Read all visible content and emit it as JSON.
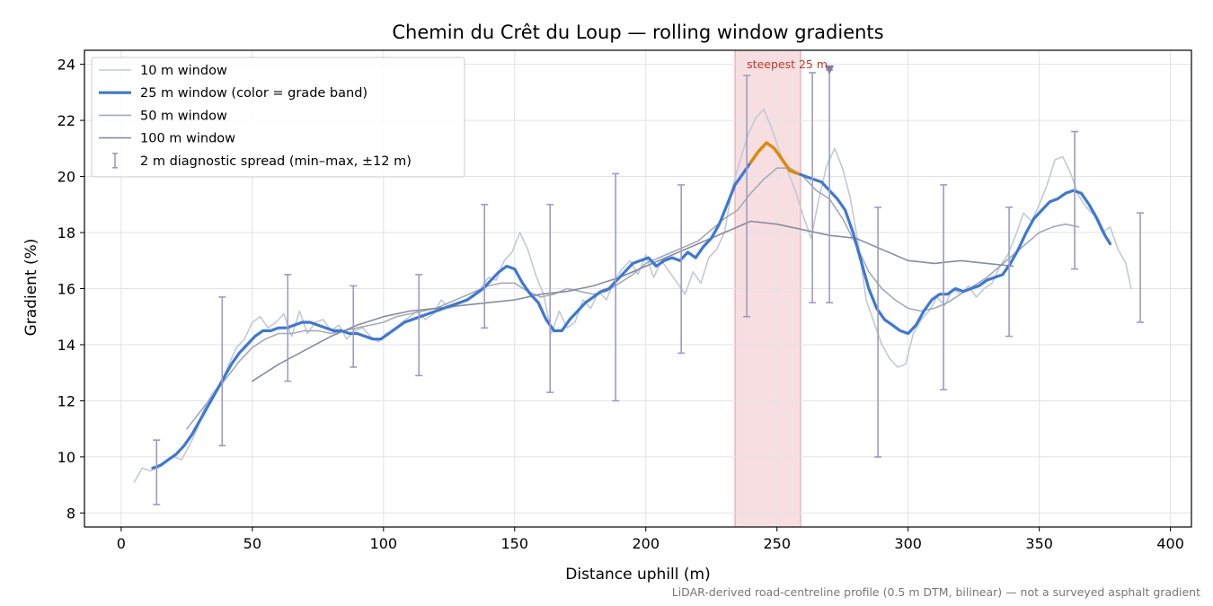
{
  "chart_data": {
    "type": "line",
    "title": "Chemin du Crêt du Loup — rolling window gradients",
    "xlabel": "Distance uphill (m)",
    "ylabel": "Gradient (%)",
    "xlim": [
      -14,
      408
    ],
    "ylim": [
      7.5,
      24.5
    ],
    "xticks": [
      0,
      50,
      100,
      150,
      200,
      250,
      300,
      350,
      400
    ],
    "yticks": [
      8,
      10,
      12,
      14,
      16,
      18,
      20,
      22,
      24
    ],
    "grid": true,
    "legend_position": "top-left",
    "colors": {
      "w10": "#c3c9d3",
      "w25": "#3b78d8",
      "w25_steep": "#e08a00",
      "w50": "#a3aab8",
      "w100": "#868d9a",
      "errorbar": "#9d9cc0",
      "highlight": "#f0c4c8",
      "annotation": "#c0392b",
      "marker": "#8878a8"
    },
    "series": [
      {
        "name": "10 m window",
        "x": [
          5,
          8,
          11,
          14,
          17,
          20,
          23,
          26,
          29,
          32,
          35,
          38,
          41,
          44,
          47,
          50,
          53,
          56,
          59,
          62,
          65,
          68,
          71,
          74,
          77,
          80,
          83,
          86,
          89,
          92,
          95,
          98,
          101,
          104,
          107,
          110,
          113,
          116,
          119,
          122,
          125,
          128,
          131,
          134,
          137,
          140,
          143,
          146,
          149,
          152,
          155,
          158,
          161,
          164,
          167,
          170,
          173,
          176,
          179,
          182,
          185,
          188,
          191,
          194,
          197,
          200,
          203,
          206,
          209,
          212,
          215,
          218,
          221,
          224,
          227,
          230,
          233,
          236,
          239,
          242,
          245,
          248,
          251,
          254,
          257,
          260,
          263,
          266,
          269,
          272,
          275,
          278,
          281,
          284,
          287,
          290,
          293,
          296,
          299,
          302,
          305,
          308,
          311,
          314,
          317,
          320,
          323,
          326,
          329,
          332,
          335,
          338,
          341,
          344,
          347,
          350,
          353,
          356,
          359,
          362,
          365,
          368,
          371,
          374,
          377,
          380,
          383,
          385
        ],
        "y": [
          9.1,
          9.6,
          9.5,
          9.6,
          9.8,
          10.0,
          9.9,
          10.4,
          11.0,
          11.8,
          12.3,
          12.6,
          13.3,
          13.9,
          14.2,
          14.8,
          15.0,
          14.6,
          14.8,
          15.1,
          14.3,
          15.2,
          14.4,
          14.8,
          14.9,
          14.5,
          14.7,
          14.2,
          14.5,
          14.6,
          14.3,
          14.1,
          14.4,
          14.5,
          14.8,
          15.0,
          15.2,
          14.9,
          15.1,
          15.6,
          15.3,
          15.4,
          15.6,
          15.7,
          16.0,
          16.4,
          16.3,
          17.0,
          17.3,
          18.0,
          17.4,
          16.5,
          15.8,
          14.4,
          15.2,
          14.6,
          14.8,
          15.6,
          15.3,
          15.9,
          15.6,
          16.3,
          16.7,
          17.0,
          16.5,
          17.2,
          16.4,
          17.0,
          16.6,
          16.2,
          15.8,
          16.6,
          16.2,
          17.1,
          17.4,
          18.0,
          19.6,
          20.6,
          21.5,
          22.1,
          22.4,
          21.7,
          20.9,
          20.2,
          19.5,
          18.6,
          17.8,
          19.2,
          20.4,
          21.0,
          20.3,
          19.2,
          17.6,
          15.6,
          14.8,
          14.0,
          13.5,
          13.2,
          13.3,
          14.4,
          14.9,
          15.2,
          15.7,
          15.4,
          16.0,
          15.8,
          16.1,
          15.7,
          16.0,
          16.2,
          16.8,
          17.2,
          17.9,
          18.7,
          18.4,
          19.0,
          19.7,
          20.6,
          20.7,
          20.1,
          19.3,
          18.9,
          18.6,
          18.0,
          18.2,
          17.4,
          16.9,
          16.0
        ]
      },
      {
        "name": "25 m window (color = grade band)",
        "x": [
          12,
          15,
          18,
          21,
          24,
          27,
          30,
          33,
          36,
          39,
          42,
          45,
          48,
          51,
          54,
          57,
          60,
          63,
          66,
          69,
          72,
          75,
          78,
          81,
          84,
          87,
          90,
          93,
          96,
          99,
          102,
          105,
          108,
          111,
          114,
          117,
          120,
          123,
          126,
          129,
          132,
          135,
          138,
          141,
          144,
          147,
          150,
          153,
          156,
          159,
          162,
          165,
          168,
          171,
          174,
          177,
          180,
          183,
          186,
          189,
          192,
          195,
          198,
          201,
          204,
          207,
          210,
          213,
          216,
          219,
          222,
          225,
          228,
          231,
          234,
          237,
          240,
          243,
          246,
          249,
          252,
          255,
          258,
          261,
          264,
          267,
          270,
          273,
          276,
          279,
          282,
          285,
          288,
          291,
          294,
          297,
          300,
          303,
          306,
          309,
          312,
          315,
          318,
          321,
          324,
          327,
          330,
          333,
          336,
          339,
          342,
          345,
          348,
          351,
          354,
          357,
          360,
          363,
          366,
          369,
          372,
          375,
          377
        ],
        "y": [
          9.6,
          9.7,
          9.9,
          10.1,
          10.4,
          10.8,
          11.3,
          11.8,
          12.3,
          12.8,
          13.3,
          13.7,
          14.0,
          14.3,
          14.5,
          14.5,
          14.6,
          14.6,
          14.7,
          14.8,
          14.8,
          14.7,
          14.6,
          14.5,
          14.5,
          14.4,
          14.4,
          14.3,
          14.2,
          14.2,
          14.4,
          14.6,
          14.8,
          14.9,
          15.0,
          15.1,
          15.2,
          15.3,
          15.4,
          15.5,
          15.6,
          15.8,
          16.0,
          16.3,
          16.6,
          16.8,
          16.7,
          16.2,
          15.8,
          15.5,
          14.9,
          14.5,
          14.5,
          14.9,
          15.2,
          15.5,
          15.7,
          15.9,
          16.0,
          16.3,
          16.6,
          16.9,
          17.0,
          17.1,
          16.8,
          17.0,
          17.1,
          17.0,
          17.3,
          17.1,
          17.5,
          17.8,
          18.3,
          19.0,
          19.7,
          20.1,
          20.5,
          20.9,
          21.2,
          21.0,
          20.6,
          20.2,
          20.1,
          20.0,
          19.9,
          19.8,
          19.5,
          19.2,
          18.8,
          18.0,
          17.0,
          16.0,
          15.3,
          14.9,
          14.7,
          14.5,
          14.4,
          14.7,
          15.2,
          15.6,
          15.8,
          15.8,
          16.0,
          15.9,
          16.0,
          16.1,
          16.3,
          16.4,
          16.5,
          16.9,
          17.4,
          18.0,
          18.5,
          18.8,
          19.1,
          19.2,
          19.4,
          19.5,
          19.4,
          19.0,
          18.5,
          17.9,
          17.6
        ]
      },
      {
        "name": "50 m window",
        "x": [
          25,
          30,
          35,
          40,
          45,
          50,
          55,
          60,
          65,
          70,
          75,
          80,
          85,
          90,
          95,
          100,
          105,
          110,
          115,
          120,
          125,
          130,
          135,
          140,
          145,
          150,
          155,
          160,
          165,
          170,
          175,
          180,
          185,
          190,
          195,
          200,
          205,
          210,
          215,
          220,
          225,
          230,
          235,
          240,
          245,
          250,
          255,
          260,
          265,
          270,
          275,
          280,
          285,
          290,
          295,
          300,
          305,
          310,
          315,
          320,
          325,
          330,
          335,
          340,
          345,
          350,
          355,
          360,
          365
        ],
        "y": [
          11.0,
          11.6,
          12.2,
          12.8,
          13.4,
          13.9,
          14.2,
          14.4,
          14.4,
          14.5,
          14.5,
          14.4,
          14.5,
          14.6,
          14.7,
          14.8,
          15.0,
          15.1,
          15.2,
          15.3,
          15.5,
          15.7,
          15.9,
          16.1,
          16.2,
          16.2,
          15.9,
          15.7,
          15.8,
          16.0,
          15.9,
          15.8,
          15.9,
          16.2,
          16.5,
          16.9,
          17.1,
          17.3,
          17.5,
          17.7,
          18.1,
          18.5,
          18.8,
          19.4,
          19.9,
          20.3,
          20.3,
          20.0,
          19.5,
          19.2,
          18.5,
          17.6,
          16.6,
          16.0,
          15.6,
          15.3,
          15.2,
          15.3,
          15.5,
          15.8,
          16.1,
          16.4,
          16.8,
          17.2,
          17.6,
          18.0,
          18.2,
          18.3,
          18.2
        ]
      },
      {
        "name": "100 m window",
        "x": [
          50,
          60,
          70,
          80,
          90,
          100,
          110,
          120,
          130,
          140,
          150,
          160,
          170,
          180,
          190,
          200,
          210,
          220,
          230,
          240,
          250,
          260,
          270,
          280,
          290,
          300,
          310,
          320,
          330,
          340
        ],
        "y": [
          12.7,
          13.3,
          13.8,
          14.3,
          14.7,
          15.0,
          15.2,
          15.3,
          15.4,
          15.5,
          15.6,
          15.8,
          15.9,
          16.1,
          16.4,
          16.8,
          17.2,
          17.6,
          18.0,
          18.4,
          18.3,
          18.1,
          17.9,
          17.8,
          17.4,
          17.0,
          16.9,
          17.0,
          16.9,
          16.8
        ]
      }
    ],
    "steep_segment": {
      "name": "25 m window (color = grade band)",
      "x": [
        240,
        243,
        246,
        249,
        252,
        255,
        258
      ],
      "y": [
        20.5,
        20.9,
        21.2,
        21.0,
        20.6,
        20.2,
        20.1
      ]
    },
    "error_bars": {
      "name": "2 m diagnostic spread (min–max, ±12 m)",
      "x": [
        13.5,
        38.5,
        63.5,
        88.5,
        113.5,
        138.5,
        163.5,
        188.5,
        213.5,
        238.5,
        263.5,
        270,
        288.5,
        313.5,
        338.5,
        363.5,
        388.5
      ],
      "low": [
        8.3,
        10.4,
        12.7,
        13.2,
        12.9,
        14.6,
        12.3,
        12.0,
        13.7,
        15.0,
        15.5,
        15.5,
        10.0,
        12.4,
        14.3,
        16.7,
        14.8
      ],
      "high": [
        10.6,
        15.7,
        16.5,
        16.1,
        16.5,
        19.0,
        19.0,
        20.1,
        19.7,
        23.6,
        23.7,
        23.8,
        18.9,
        19.7,
        18.9,
        21.6,
        18.7
      ]
    },
    "highlight_band": {
      "x0": 234,
      "x1": 259
    },
    "annotation": {
      "text": "steepest 25 m",
      "x": 270,
      "y": 23.8
    },
    "footnote": "LiDAR-derived road-centreline profile (0.5 m DTM, bilinear) — not a surveyed asphalt gradient"
  }
}
